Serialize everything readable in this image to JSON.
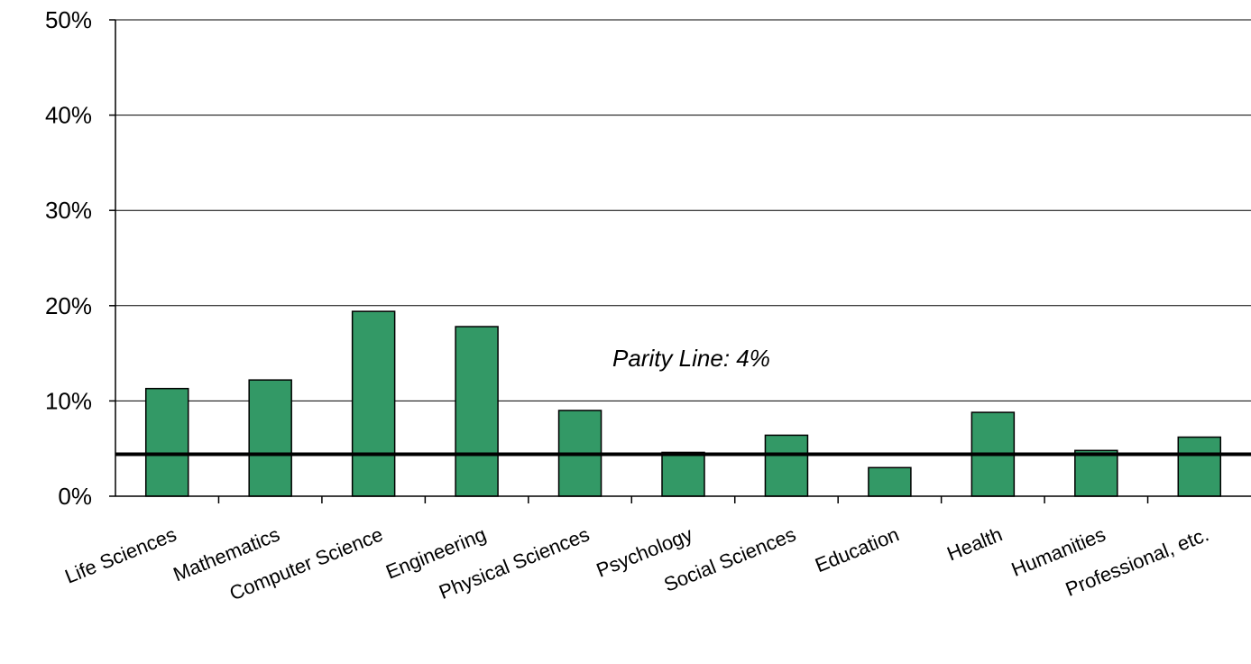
{
  "chart_data": {
    "type": "bar",
    "title": "",
    "xlabel": "",
    "ylabel": "",
    "categories": [
      "Life Sciences",
      "Mathematics",
      "Computer Science",
      "Engineering",
      "Physical Sciences",
      "Psychology",
      "Social Sciences",
      "Education",
      "Health",
      "Humanities",
      "Professional, etc."
    ],
    "values": [
      11.3,
      12.2,
      19.4,
      17.8,
      9.0,
      4.6,
      6.4,
      3.0,
      8.8,
      4.8,
      6.2
    ],
    "ylim": [
      0,
      50
    ],
    "yticks": [
      0,
      10,
      20,
      30,
      40,
      50
    ],
    "ytick_labels": [
      "0%",
      "10%",
      "20%",
      "30%",
      "40%",
      "50%"
    ],
    "grid": true,
    "bar_color": "#339966",
    "reference_line": {
      "value": 4.4,
      "label": "Parity Line: 4%"
    }
  }
}
